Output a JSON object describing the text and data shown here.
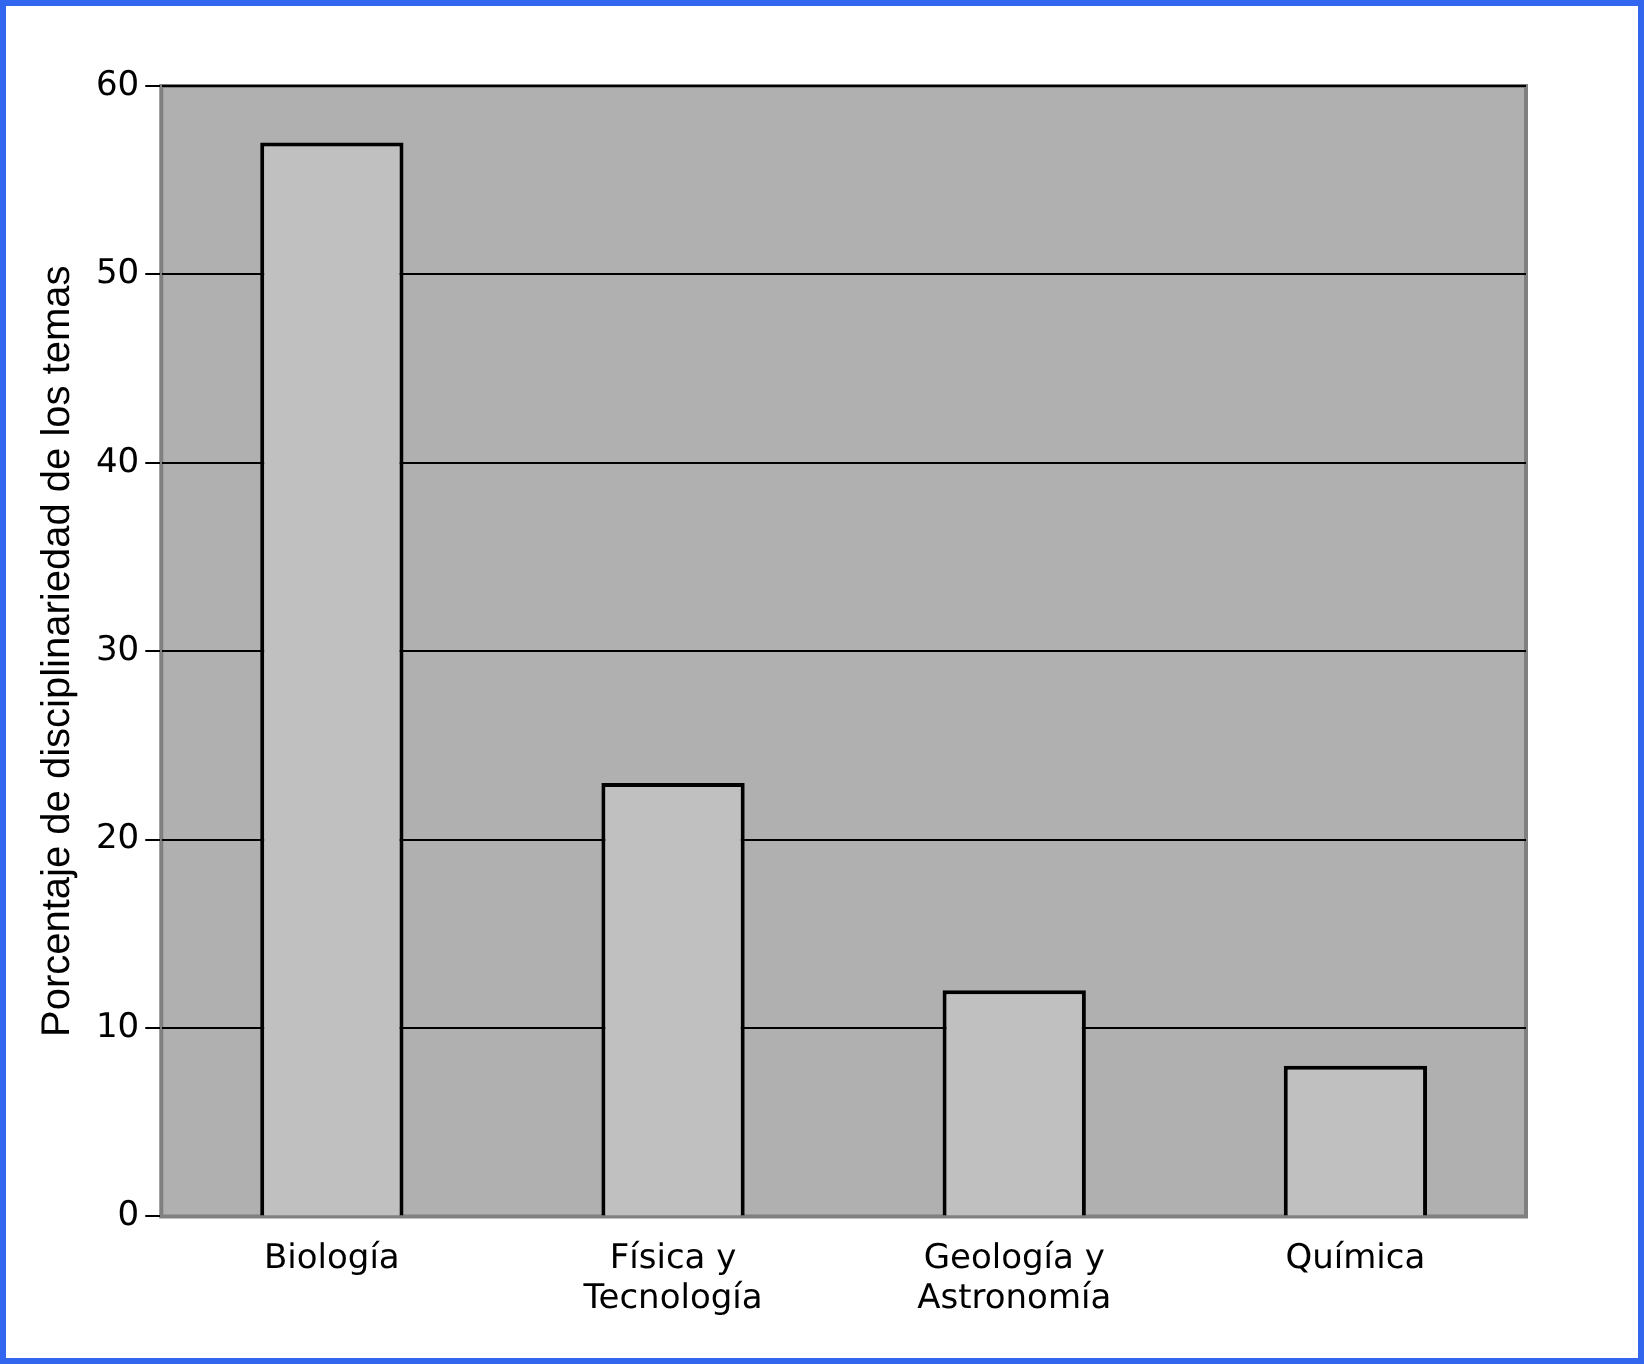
{
  "chart_data": {
    "type": "bar",
    "ylabel": "Porcentaje de disciplinariedad de los temas",
    "categories": [
      "Biología",
      "Física y Tecnología",
      "Geología y Astronomía",
      "Química"
    ],
    "values": [
      57,
      23,
      12,
      8
    ],
    "color": "#c0c0c0",
    "ylim": [
      0,
      60
    ],
    "yticks": [
      0,
      10,
      20,
      30,
      40,
      50,
      60
    ],
    "grid": "y",
    "legend": false
  }
}
